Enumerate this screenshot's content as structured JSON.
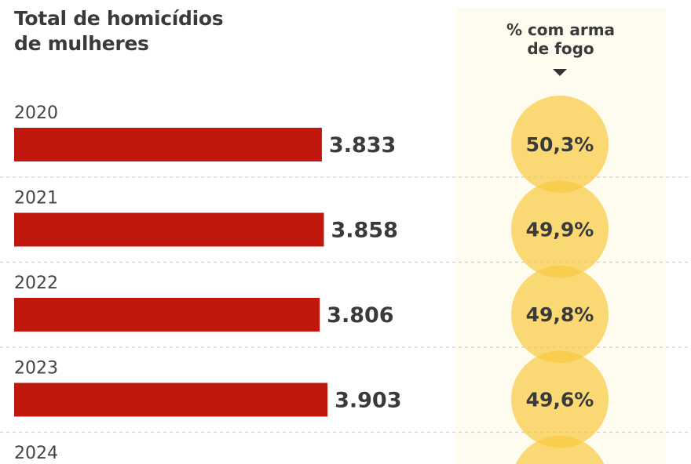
{
  "chart_data": {
    "type": "bar",
    "title": "Total de homicídios de mulheres",
    "title_lines": [
      "Total de homicídios",
      "de mulheres"
    ],
    "categories": [
      "2020",
      "2021",
      "2022",
      "2023",
      "2024"
    ],
    "values": [
      3833,
      3858,
      3806,
      3903,
      null
    ],
    "value_labels": [
      "3.833",
      "3.858",
      "3.806",
      "3.903",
      ""
    ],
    "bar_color": "#c0180f",
    "secondary": {
      "title": "% com arma de fogo",
      "title_lines": [
        "% com arma",
        "de fogo"
      ],
      "values": [
        50.3,
        49.9,
        49.8,
        49.6,
        null
      ],
      "labels": [
        "50,3%",
        "49,9%",
        "49,8%",
        "49,6%",
        ""
      ],
      "circle_color": "#f8c93e",
      "panel_color": "#fefbef"
    },
    "grid": false
  }
}
